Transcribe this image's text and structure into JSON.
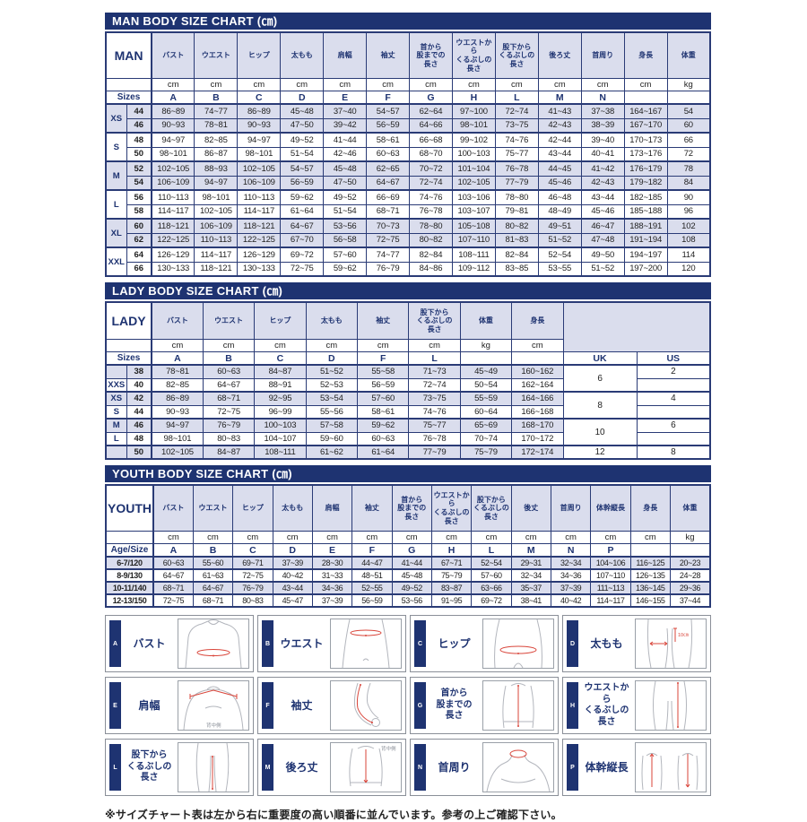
{
  "colors": {
    "navy": "#1e3371",
    "lavender": "#dadded",
    "border": "#2a3b76",
    "red": "#d9453a",
    "figure_grey": "#b3b6bd"
  },
  "man_chart": {
    "title": "MAN BODY SIZE CHART (㎝)",
    "corner_label": "MAN",
    "sizes_label": "Sizes",
    "columns": [
      "バスト",
      "ウエスト",
      "ヒップ",
      "太もも",
      "肩幅",
      "袖丈",
      "首から\n股までの\n長さ",
      "ウエストから\nくるぶしの\n長さ",
      "股下から\nくるぶしの\n長さ",
      "後ろ丈",
      "首周り",
      "身長",
      "体重"
    ],
    "units": [
      "cm",
      "cm",
      "cm",
      "cm",
      "cm",
      "cm",
      "cm",
      "cm",
      "cm",
      "cm",
      "cm",
      "cm",
      "kg"
    ],
    "letters": [
      "A",
      "B",
      "C",
      "D",
      "E",
      "F",
      "G",
      "H",
      "L",
      "M",
      "N",
      "",
      ""
    ],
    "groups": [
      {
        "label": "XS",
        "rows": [
          {
            "size": "44",
            "values": [
              "86~89",
              "74~77",
              "86~89",
              "45~48",
              "37~40",
              "54~57",
              "62~64",
              "97~100",
              "72~74",
              "41~43",
              "37~38",
              "164~167",
              "54"
            ]
          },
          {
            "size": "46",
            "values": [
              "90~93",
              "78~81",
              "90~93",
              "47~50",
              "39~42",
              "56~59",
              "64~66",
              "98~101",
              "73~75",
              "42~43",
              "38~39",
              "167~170",
              "60"
            ]
          }
        ]
      },
      {
        "label": "S",
        "rows": [
          {
            "size": "48",
            "values": [
              "94~97",
              "82~85",
              "94~97",
              "49~52",
              "41~44",
              "58~61",
              "66~68",
              "99~102",
              "74~76",
              "42~44",
              "39~40",
              "170~173",
              "66"
            ]
          },
          {
            "size": "50",
            "values": [
              "98~101",
              "86~87",
              "98~101",
              "51~54",
              "42~46",
              "60~63",
              "68~70",
              "100~103",
              "75~77",
              "43~44",
              "40~41",
              "173~176",
              "72"
            ]
          }
        ]
      },
      {
        "label": "M",
        "rows": [
          {
            "size": "52",
            "values": [
              "102~105",
              "88~93",
              "102~105",
              "54~57",
              "45~48",
              "62~65",
              "70~72",
              "101~104",
              "76~78",
              "44~45",
              "41~42",
              "176~179",
              "78"
            ]
          },
          {
            "size": "54",
            "values": [
              "106~109",
              "94~97",
              "106~109",
              "56~59",
              "47~50",
              "64~67",
              "72~74",
              "102~105",
              "77~79",
              "45~46",
              "42~43",
              "179~182",
              "84"
            ]
          }
        ]
      },
      {
        "label": "L",
        "rows": [
          {
            "size": "56",
            "values": [
              "110~113",
              "98~101",
              "110~113",
              "59~62",
              "49~52",
              "66~69",
              "74~76",
              "103~106",
              "78~80",
              "46~48",
              "43~44",
              "182~185",
              "90"
            ]
          },
          {
            "size": "58",
            "values": [
              "114~117",
              "102~105",
              "114~117",
              "61~64",
              "51~54",
              "68~71",
              "76~78",
              "103~107",
              "79~81",
              "48~49",
              "45~46",
              "185~188",
              "96"
            ]
          }
        ]
      },
      {
        "label": "XL",
        "rows": [
          {
            "size": "60",
            "values": [
              "118~121",
              "106~109",
              "118~121",
              "64~67",
              "53~56",
              "70~73",
              "78~80",
              "105~108",
              "80~82",
              "49~51",
              "46~47",
              "188~191",
              "102"
            ]
          },
          {
            "size": "62",
            "values": [
              "122~125",
              "110~113",
              "122~125",
              "67~70",
              "56~58",
              "72~75",
              "80~82",
              "107~110",
              "81~83",
              "51~52",
              "47~48",
              "191~194",
              "108"
            ]
          }
        ]
      },
      {
        "label": "XXL",
        "rows": [
          {
            "size": "64",
            "values": [
              "126~129",
              "114~117",
              "126~129",
              "69~72",
              "57~60",
              "74~77",
              "82~84",
              "108~111",
              "82~84",
              "52~54",
              "49~50",
              "194~197",
              "114"
            ]
          },
          {
            "size": "66",
            "values": [
              "130~133",
              "118~121",
              "130~133",
              "72~75",
              "59~62",
              "76~79",
              "84~86",
              "109~112",
              "83~85",
              "53~55",
              "51~52",
              "197~200",
              "120"
            ]
          }
        ]
      }
    ]
  },
  "lady_chart": {
    "title": "LADY BODY SIZE CHART (㎝)",
    "corner_label": "LADY",
    "sizes_label": "Sizes",
    "columns": [
      "バスト",
      "ウエスト",
      "ヒップ",
      "太もも",
      "袖丈",
      "股下から\nくるぶしの\n長さ",
      "体重",
      "身長"
    ],
    "units": [
      "cm",
      "cm",
      "cm",
      "cm",
      "cm",
      "cm",
      "kg",
      "cm"
    ],
    "letters": [
      "A",
      "B",
      "C",
      "D",
      "F",
      "L",
      "",
      ""
    ],
    "extra_letters": [
      "UK",
      "US"
    ],
    "rows": [
      {
        "label": "",
        "size": "38",
        "values": [
          "78~81",
          "60~63",
          "84~87",
          "51~52",
          "55~58",
          "71~73",
          "45~49",
          "160~162"
        ],
        "uk": "6",
        "uk_span": 2,
        "us": "2"
      },
      {
        "label": "XXS",
        "size": "40",
        "values": [
          "82~85",
          "64~67",
          "88~91",
          "52~53",
          "56~59",
          "72~74",
          "50~54",
          "162~164"
        ],
        "us": ""
      },
      {
        "label": "XS",
        "size": "42",
        "values": [
          "86~89",
          "68~71",
          "92~95",
          "53~54",
          "57~60",
          "73~75",
          "55~59",
          "164~166"
        ],
        "uk": "8",
        "uk_span": 2,
        "us": "4"
      },
      {
        "label": "S",
        "size": "44",
        "values": [
          "90~93",
          "72~75",
          "96~99",
          "55~56",
          "58~61",
          "74~76",
          "60~64",
          "166~168"
        ],
        "us": ""
      },
      {
        "label": "M",
        "size": "46",
        "values": [
          "94~97",
          "76~79",
          "100~103",
          "57~58",
          "59~62",
          "75~77",
          "65~69",
          "168~170"
        ],
        "uk": "10",
        "uk_span": 2,
        "us": "6"
      },
      {
        "label": "L",
        "size": "48",
        "values": [
          "98~101",
          "80~83",
          "104~107",
          "59~60",
          "60~63",
          "76~78",
          "70~74",
          "170~172"
        ],
        "us": ""
      },
      {
        "label": "",
        "size": "50",
        "values": [
          "102~105",
          "84~87",
          "108~111",
          "61~62",
          "61~64",
          "77~79",
          "75~79",
          "172~174"
        ],
        "uk": "12",
        "uk_span": 1,
        "us": "8"
      }
    ]
  },
  "youth_chart": {
    "title": "YOUTH BODY SIZE CHART (㎝)",
    "corner_label": "YOUTH",
    "sizes_label": "Age/Size",
    "columns": [
      "バスト",
      "ウエスト",
      "ヒップ",
      "太もも",
      "肩幅",
      "袖丈",
      "首から\n股までの\n長さ",
      "ウエストから\nくるぶしの\n長さ",
      "股下から\nくるぶしの\n長さ",
      "後丈",
      "首周り",
      "体幹縦長",
      "身長",
      "体重"
    ],
    "units": [
      "cm",
      "cm",
      "cm",
      "cm",
      "cm",
      "cm",
      "cm",
      "cm",
      "cm",
      "cm",
      "cm",
      "cm",
      "cm",
      "kg"
    ],
    "letters": [
      "A",
      "B",
      "C",
      "D",
      "E",
      "F",
      "G",
      "H",
      "L",
      "M",
      "N",
      "P",
      "",
      ""
    ],
    "rows": [
      {
        "label": "6-7/120",
        "values": [
          "60~63",
          "55~60",
          "69~71",
          "37~39",
          "28~30",
          "44~47",
          "41~44",
          "67~71",
          "52~54",
          "29~31",
          "32~34",
          "104~106",
          "116~125",
          "20~23"
        ]
      },
      {
        "label": "8-9/130",
        "values": [
          "64~67",
          "61~63",
          "72~75",
          "40~42",
          "31~33",
          "48~51",
          "45~48",
          "75~79",
          "57~60",
          "32~34",
          "34~36",
          "107~110",
          "126~135",
          "24~28"
        ]
      },
      {
        "label": "10-11/140",
        "values": [
          "68~71",
          "64~67",
          "76~79",
          "43~44",
          "34~36",
          "52~55",
          "49~52",
          "83~87",
          "63~66",
          "35~37",
          "37~39",
          "111~113",
          "136~145",
          "29~36"
        ]
      },
      {
        "label": "12-13/150",
        "values": [
          "72~75",
          "68~71",
          "80~83",
          "45~47",
          "37~39",
          "56~59",
          "53~56",
          "91~95",
          "69~72",
          "38~41",
          "40~42",
          "114~117",
          "146~155",
          "37~44"
        ]
      }
    ]
  },
  "diagrams": {
    "items": [
      {
        "letter": "A",
        "label": "バスト",
        "figure": "bust"
      },
      {
        "letter": "B",
        "label": "ウエスト",
        "figure": "waist"
      },
      {
        "letter": "C",
        "label": "ヒップ",
        "figure": "hip"
      },
      {
        "letter": "D",
        "label": "太もも",
        "figure": "thigh",
        "note": "10㎝"
      },
      {
        "letter": "E",
        "label": "肩幅",
        "figure": "shoulder",
        "note": "背中側"
      },
      {
        "letter": "F",
        "label": "袖丈",
        "figure": "sleeve"
      },
      {
        "letter": "G",
        "label": "首から\n股までの\n長さ",
        "figure": "neck_crotch"
      },
      {
        "letter": "H",
        "label": "ウエストから\nくるぶしの\n長さ",
        "figure": "waist_ankle"
      },
      {
        "letter": "L",
        "label": "股下から\nくるぶしの\n長さ",
        "figure": "inseam"
      },
      {
        "letter": "M",
        "label": "後ろ丈",
        "figure": "back_length",
        "note": "背中側"
      },
      {
        "letter": "N",
        "label": "首周り",
        "figure": "neck"
      },
      {
        "letter": "P",
        "label": "体幹縦長",
        "figure": "torso_height"
      }
    ]
  },
  "footer": {
    "note": "※サイズチャート表は左から右に重要度の高い順番に並んでいます。参考の上ご確認下さい。"
  }
}
